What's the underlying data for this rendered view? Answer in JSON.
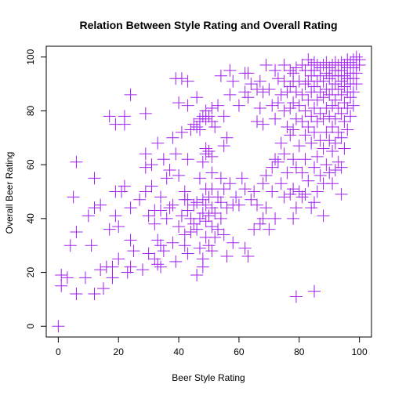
{
  "chart_data": {
    "type": "scatter",
    "title": "Relation Between Style Rating and Overall Rating",
    "xlabel": "Beer Style Rating",
    "ylabel": "Overall Beer Rating",
    "xlim": [
      -4,
      104
    ],
    "ylim": [
      -4,
      104
    ],
    "xticks": [
      0,
      20,
      40,
      60,
      80,
      100
    ],
    "yticks": [
      0,
      20,
      40,
      60,
      80,
      100
    ],
    "grid": false,
    "marker": "plus",
    "color": "#A020F0",
    "points": [
      [
        0,
        0
      ],
      [
        1,
        15
      ],
      [
        1,
        19
      ],
      [
        3,
        18
      ],
      [
        4,
        30
      ],
      [
        5,
        48
      ],
      [
        6,
        61
      ],
      [
        6,
        35
      ],
      [
        6,
        12
      ],
      [
        9,
        18
      ],
      [
        10,
        41
      ],
      [
        11,
        30
      ],
      [
        12,
        12
      ],
      [
        12,
        44
      ],
      [
        12,
        55
      ],
      [
        14,
        45
      ],
      [
        14,
        21
      ],
      [
        15,
        14
      ],
      [
        16,
        22
      ],
      [
        17,
        78
      ],
      [
        17,
        36
      ],
      [
        18,
        18
      ],
      [
        18,
        22
      ],
      [
        19,
        75
      ],
      [
        19,
        50
      ],
      [
        19,
        41
      ],
      [
        20,
        37
      ],
      [
        20,
        25
      ],
      [
        21,
        50
      ],
      [
        22,
        75
      ],
      [
        22,
        52
      ],
      [
        22,
        78
      ],
      [
        23,
        20
      ],
      [
        24,
        86
      ],
      [
        24,
        44
      ],
      [
        24,
        32
      ],
      [
        24,
        22
      ],
      [
        25,
        28
      ],
      [
        27,
        47
      ],
      [
        28,
        21
      ],
      [
        29,
        79
      ],
      [
        29,
        64
      ],
      [
        29,
        50
      ],
      [
        29,
        59
      ],
      [
        30,
        41
      ],
      [
        30,
        27
      ],
      [
        31,
        52
      ],
      [
        31,
        60
      ],
      [
        32,
        25
      ],
      [
        32,
        38
      ],
      [
        32,
        43
      ],
      [
        33,
        32
      ],
      [
        33,
        23
      ],
      [
        33,
        68
      ],
      [
        34,
        22
      ],
      [
        34,
        30
      ],
      [
        34,
        43
      ],
      [
        34,
        48
      ],
      [
        35,
        62
      ],
      [
        35,
        28
      ],
      [
        36,
        55
      ],
      [
        36,
        40
      ],
      [
        37,
        58
      ],
      [
        37,
        44
      ],
      [
        38,
        45
      ],
      [
        38,
        70
      ],
      [
        38,
        31
      ],
      [
        39,
        64
      ],
      [
        39,
        24
      ],
      [
        39,
        92
      ],
      [
        40,
        83
      ],
      [
        40,
        56
      ],
      [
        40,
        37
      ],
      [
        41,
        41
      ],
      [
        41,
        72
      ],
      [
        41,
        92
      ],
      [
        42,
        50
      ],
      [
        42,
        47
      ],
      [
        42,
        34
      ],
      [
        42,
        30
      ],
      [
        43,
        47
      ],
      [
        43,
        43
      ],
      [
        43,
        62
      ],
      [
        43,
        91
      ],
      [
        43,
        82
      ],
      [
        43,
        27
      ],
      [
        44,
        73
      ],
      [
        44,
        40
      ],
      [
        44,
        35
      ],
      [
        45,
        75
      ],
      [
        45,
        45
      ],
      [
        45,
        38
      ],
      [
        46,
        74
      ],
      [
        46,
        85
      ],
      [
        46,
        46
      ],
      [
        46,
        36
      ],
      [
        46,
        19
      ],
      [
        47,
        77
      ],
      [
        47,
        76
      ],
      [
        47,
        73
      ],
      [
        47,
        55
      ],
      [
        47,
        40
      ],
      [
        47,
        29
      ],
      [
        48,
        78
      ],
      [
        48,
        61
      ],
      [
        48,
        47
      ],
      [
        48,
        42
      ],
      [
        48,
        25
      ],
      [
        48,
        22
      ],
      [
        49,
        80
      ],
      [
        49,
        77
      ],
      [
        49,
        66
      ],
      [
        49,
        64
      ],
      [
        49,
        51
      ],
      [
        49,
        45
      ],
      [
        49,
        39
      ],
      [
        49,
        33
      ],
      [
        50,
        78
      ],
      [
        50,
        65
      ],
      [
        50,
        48
      ],
      [
        50,
        41
      ],
      [
        50,
        30
      ],
      [
        51,
        81
      ],
      [
        51,
        76
      ],
      [
        51,
        63
      ],
      [
        51,
        57
      ],
      [
        51,
        51
      ],
      [
        51,
        44
      ],
      [
        51,
        37
      ],
      [
        51,
        28
      ],
      [
        52,
        74
      ],
      [
        52,
        42
      ],
      [
        52,
        33
      ],
      [
        53,
        82
      ],
      [
        53,
        48
      ],
      [
        53,
        36
      ],
      [
        54,
        93
      ],
      [
        54,
        55
      ],
      [
        54,
        46
      ],
      [
        54,
        40
      ],
      [
        55,
        78
      ],
      [
        55,
        67
      ],
      [
        55,
        51
      ],
      [
        55,
        34
      ],
      [
        56,
        70
      ],
      [
        56,
        44
      ],
      [
        56,
        26
      ],
      [
        57,
        95
      ],
      [
        57,
        86
      ],
      [
        57,
        53
      ],
      [
        58,
        91
      ],
      [
        58,
        45
      ],
      [
        58,
        31
      ],
      [
        59,
        48
      ],
      [
        60,
        82
      ],
      [
        60,
        45
      ],
      [
        61,
        55
      ],
      [
        62,
        94
      ],
      [
        62,
        87
      ],
      [
        62,
        51
      ],
      [
        62,
        29
      ],
      [
        63,
        94
      ],
      [
        63,
        85
      ],
      [
        63,
        26
      ],
      [
        64,
        90
      ],
      [
        64,
        47
      ],
      [
        65,
        50
      ],
      [
        65,
        36
      ],
      [
        66,
        88
      ],
      [
        66,
        76
      ],
      [
        66,
        45
      ],
      [
        67,
        91
      ],
      [
        67,
        81
      ],
      [
        67,
        38
      ],
      [
        68,
        87
      ],
      [
        68,
        75
      ],
      [
        68,
        53
      ],
      [
        68,
        40
      ],
      [
        69,
        97
      ],
      [
        69,
        56
      ],
      [
        69,
        44
      ],
      [
        70,
        88
      ],
      [
        70,
        36
      ],
      [
        71,
        82
      ],
      [
        71,
        59
      ],
      [
        71,
        50
      ],
      [
        72,
        95
      ],
      [
        72,
        77
      ],
      [
        72,
        62
      ],
      [
        72,
        40
      ],
      [
        73,
        92
      ],
      [
        73,
        83
      ],
      [
        73,
        61
      ],
      [
        74,
        86
      ],
      [
        74,
        68
      ],
      [
        74,
        53
      ],
      [
        75,
        97
      ],
      [
        75,
        91
      ],
      [
        75,
        80
      ],
      [
        75,
        64
      ],
      [
        75,
        48
      ],
      [
        76,
        87
      ],
      [
        76,
        74
      ],
      [
        76,
        57
      ],
      [
        77,
        95
      ],
      [
        77,
        89
      ],
      [
        77,
        81
      ],
      [
        77,
        71
      ],
      [
        77,
        49
      ],
      [
        78,
        94
      ],
      [
        78,
        91
      ],
      [
        78,
        83
      ],
      [
        78,
        73
      ],
      [
        78,
        62
      ],
      [
        78,
        51
      ],
      [
        78,
        40
      ],
      [
        79,
        96
      ],
      [
        79,
        87
      ],
      [
        79,
        77
      ],
      [
        79,
        59
      ],
      [
        79,
        44
      ],
      [
        79,
        11
      ],
      [
        80,
        91
      ],
      [
        80,
        82
      ],
      [
        80,
        67
      ],
      [
        80,
        50
      ],
      [
        81,
        97
      ],
      [
        81,
        86
      ],
      [
        81,
        76
      ],
      [
        81,
        57
      ],
      [
        81,
        48
      ],
      [
        82,
        95
      ],
      [
        82,
        90
      ],
      [
        82,
        80
      ],
      [
        82,
        71
      ],
      [
        82,
        62
      ],
      [
        82,
        49
      ],
      [
        83,
        99
      ],
      [
        83,
        91
      ],
      [
        83,
        84
      ],
      [
        83,
        74
      ],
      [
        83,
        54
      ],
      [
        84,
        97
      ],
      [
        84,
        93
      ],
      [
        84,
        87
      ],
      [
        84,
        78
      ],
      [
        84,
        68
      ],
      [
        84,
        44
      ],
      [
        85,
        98
      ],
      [
        85,
        95
      ],
      [
        85,
        89
      ],
      [
        85,
        81
      ],
      [
        85,
        72
      ],
      [
        85,
        59
      ],
      [
        85,
        46
      ],
      [
        85,
        13
      ],
      [
        86,
        97
      ],
      [
        86,
        91
      ],
      [
        86,
        84
      ],
      [
        86,
        76
      ],
      [
        86,
        63
      ],
      [
        86,
        50
      ],
      [
        87,
        96
      ],
      [
        87,
        93
      ],
      [
        87,
        87
      ],
      [
        87,
        79
      ],
      [
        87,
        69
      ],
      [
        87,
        56
      ],
      [
        88,
        97
      ],
      [
        88,
        91
      ],
      [
        88,
        85
      ],
      [
        88,
        77
      ],
      [
        88,
        66
      ],
      [
        88,
        53
      ],
      [
        88,
        41
      ],
      [
        89,
        98
      ],
      [
        89,
        94
      ],
      [
        89,
        88
      ],
      [
        89,
        81
      ],
      [
        89,
        72
      ],
      [
        89,
        60
      ],
      [
        90,
        96
      ],
      [
        90,
        92
      ],
      [
        90,
        86
      ],
      [
        90,
        78
      ],
      [
        90,
        69
      ],
      [
        90,
        57
      ],
      [
        91,
        97
      ],
      [
        91,
        93
      ],
      [
        91,
        88
      ],
      [
        91,
        82
      ],
      [
        91,
        74
      ],
      [
        91,
        65
      ],
      [
        91,
        53
      ],
      [
        92,
        98
      ],
      [
        92,
        95
      ],
      [
        92,
        90
      ],
      [
        92,
        84
      ],
      [
        92,
        77
      ],
      [
        92,
        68
      ],
      [
        92,
        58
      ],
      [
        93,
        97
      ],
      [
        93,
        93
      ],
      [
        93,
        88
      ],
      [
        93,
        81
      ],
      [
        93,
        72
      ],
      [
        93,
        61
      ],
      [
        94,
        98
      ],
      [
        94,
        95
      ],
      [
        94,
        91
      ],
      [
        94,
        86
      ],
      [
        94,
        79
      ],
      [
        94,
        70
      ],
      [
        94,
        59
      ],
      [
        94,
        49
      ],
      [
        95,
        97
      ],
      [
        95,
        93
      ],
      [
        95,
        89
      ],
      [
        95,
        83
      ],
      [
        95,
        76
      ],
      [
        95,
        66
      ],
      [
        96,
        99
      ],
      [
        96,
        96
      ],
      [
        96,
        92
      ],
      [
        96,
        87
      ],
      [
        96,
        81
      ],
      [
        96,
        73
      ],
      [
        97,
        98
      ],
      [
        97,
        94
      ],
      [
        97,
        90
      ],
      [
        97,
        85
      ],
      [
        97,
        78
      ],
      [
        98,
        99
      ],
      [
        98,
        96
      ],
      [
        98,
        92
      ],
      [
        98,
        87
      ],
      [
        98,
        82
      ],
      [
        99,
        100
      ],
      [
        99,
        97
      ],
      [
        99,
        94
      ],
      [
        99,
        90
      ],
      [
        100,
        99
      ],
      [
        100,
        97
      ]
    ]
  }
}
